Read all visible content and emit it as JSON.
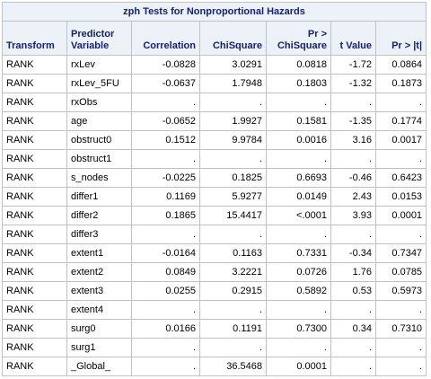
{
  "table": {
    "title": "zph Tests for Nonproportional Hazards",
    "headers": {
      "transform": "Transform",
      "predictor_line1": "Predictor",
      "predictor_line2": "Variable",
      "correlation": "Correlation",
      "chisquare": "ChiSquare",
      "pr_chisq_line1": "Pr >",
      "pr_chisq_line2": "ChiSquare",
      "tvalue": "t Value",
      "pr_t": "Pr > |t|"
    },
    "rows": [
      {
        "transform": "RANK",
        "variable": "rxLev",
        "correlation": "-0.0828",
        "chisquare": "3.0291",
        "pr_chisq": "0.0818",
        "tvalue": "-1.72",
        "pr_t": "0.0864"
      },
      {
        "transform": "RANK",
        "variable": "rxLev_5FU",
        "correlation": "-0.0637",
        "chisquare": "1.7948",
        "pr_chisq": "0.1803",
        "tvalue": "-1.32",
        "pr_t": "0.1873"
      },
      {
        "transform": "RANK",
        "variable": "rxObs",
        "correlation": ".",
        "chisquare": ".",
        "pr_chisq": ".",
        "tvalue": ".",
        "pr_t": "."
      },
      {
        "transform": "RANK",
        "variable": "age",
        "correlation": "-0.0652",
        "chisquare": "1.9927",
        "pr_chisq": "0.1581",
        "tvalue": "-1.35",
        "pr_t": "0.1774"
      },
      {
        "transform": "RANK",
        "variable": "obstruct0",
        "correlation": "0.1512",
        "chisquare": "9.9784",
        "pr_chisq": "0.0016",
        "tvalue": "3.16",
        "pr_t": "0.0017"
      },
      {
        "transform": "RANK",
        "variable": "obstruct1",
        "correlation": ".",
        "chisquare": ".",
        "pr_chisq": ".",
        "tvalue": ".",
        "pr_t": "."
      },
      {
        "transform": "RANK",
        "variable": "s_nodes",
        "correlation": "-0.0225",
        "chisquare": "0.1825",
        "pr_chisq": "0.6693",
        "tvalue": "-0.46",
        "pr_t": "0.6423"
      },
      {
        "transform": "RANK",
        "variable": "differ1",
        "correlation": "0.1169",
        "chisquare": "5.9277",
        "pr_chisq": "0.0149",
        "tvalue": "2.43",
        "pr_t": "0.0153"
      },
      {
        "transform": "RANK",
        "variable": "differ2",
        "correlation": "0.1865",
        "chisquare": "15.4417",
        "pr_chisq": "<.0001",
        "tvalue": "3.93",
        "pr_t": "0.0001"
      },
      {
        "transform": "RANK",
        "variable": "differ3",
        "correlation": ".",
        "chisquare": ".",
        "pr_chisq": ".",
        "tvalue": ".",
        "pr_t": "."
      },
      {
        "transform": "RANK",
        "variable": "extent1",
        "correlation": "-0.0164",
        "chisquare": "0.1163",
        "pr_chisq": "0.7331",
        "tvalue": "-0.34",
        "pr_t": "0.7347"
      },
      {
        "transform": "RANK",
        "variable": "extent2",
        "correlation": "0.0849",
        "chisquare": "3.2221",
        "pr_chisq": "0.0726",
        "tvalue": "1.76",
        "pr_t": "0.0785"
      },
      {
        "transform": "RANK",
        "variable": "extent3",
        "correlation": "0.0255",
        "chisquare": "0.2915",
        "pr_chisq": "0.5892",
        "tvalue": "0.53",
        "pr_t": "0.5973"
      },
      {
        "transform": "RANK",
        "variable": "extent4",
        "correlation": ".",
        "chisquare": ".",
        "pr_chisq": ".",
        "tvalue": ".",
        "pr_t": "."
      },
      {
        "transform": "RANK",
        "variable": "surg0",
        "correlation": "0.0166",
        "chisquare": "0.1191",
        "pr_chisq": "0.7300",
        "tvalue": "0.34",
        "pr_t": "0.7310"
      },
      {
        "transform": "RANK",
        "variable": "surg1",
        "correlation": ".",
        "chisquare": ".",
        "pr_chisq": ".",
        "tvalue": ".",
        "pr_t": "."
      },
      {
        "transform": "RANK",
        "variable": "_Global_",
        "correlation": ".",
        "chisquare": "36.5468",
        "pr_chisq": "0.0001",
        "tvalue": ".",
        "pr_t": "."
      }
    ]
  },
  "colors": {
    "header_background": "#edf2f9",
    "header_text": "#112277",
    "border": "#c1c1c1",
    "cell_background": "#ffffff"
  }
}
